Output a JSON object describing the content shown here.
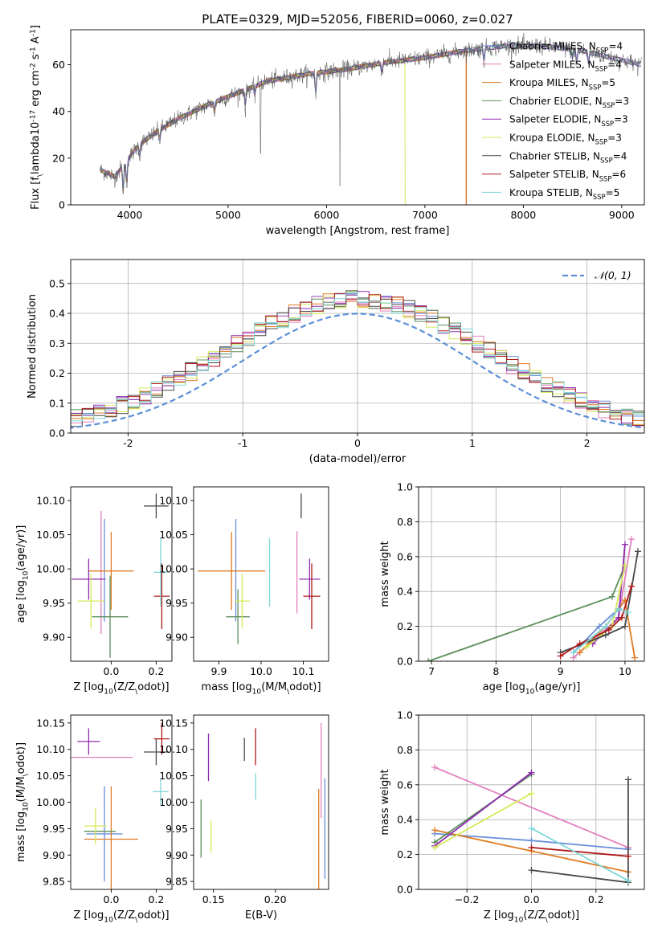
{
  "figure_title": "PLATE=0329, MJD=52056, FIBERID=0060, z=0.027",
  "colors": {
    "Chabrier MILES": "#6a8fd8",
    "Salpeter MILES": "#e37fbd",
    "Kroupa MILES": "#e07b22",
    "Chabrier ELODIE": "#5b8f5b",
    "Salpeter ELODIE": "#8f2bb0",
    "Kroupa ELODIE": "#d6e85a",
    "Chabrier STELIB": "#4a4a4a",
    "Salpeter STELIB": "#b01818",
    "Kroupa STELIB": "#7ed6d8"
  },
  "chart_data": [
    {
      "id": "spectrum",
      "type": "line",
      "title": "PLATE=0329, MJD=52056, FIBERID=0060, z=0.027",
      "xlabel": "wavelength [Angstrom, rest frame]",
      "ylabel": "Flux [f$_\\lambda$10$^{-17}$ erg cm$^{-2}$ s$^{-1}$ A$^{-1}$]",
      "xlim": [
        3400,
        9230
      ],
      "ylim": [
        0,
        75
      ],
      "xticks": [
        4000,
        5000,
        6000,
        7000,
        8000,
        9000
      ],
      "yticks": [
        0,
        20,
        40,
        60
      ],
      "legend_position": "top-right",
      "series": [
        {
          "name": "Chabrier MILES, N$_{SSP}$=4"
        },
        {
          "name": "Salpeter MILES, N$_{SSP}$=4"
        },
        {
          "name": "Kroupa MILES, N$_{SSP}$=5"
        },
        {
          "name": "Chabrier ELODIE, N$_{SSP}$=3"
        },
        {
          "name": "Salpeter ELODIE, N$_{SSP}$=3"
        },
        {
          "name": "Kroupa ELODIE, N$_{SSP}$=3"
        },
        {
          "name": "Chabrier STELIB, N$_{SSP}$=4"
        },
        {
          "name": "Salpeter STELIB, N$_{SSP}$=6"
        },
        {
          "name": "Kroupa STELIB, N$_{SSP}$=5"
        }
      ],
      "continuum": {
        "x": [
          3700,
          3850,
          3950,
          4100,
          4300,
          4500,
          4800,
          5100,
          5400,
          5800,
          6200,
          6600,
          7000,
          7400,
          7800,
          8200,
          8600,
          9000,
          9200
        ],
        "y": [
          15,
          12,
          18,
          26,
          32,
          37,
          43,
          48,
          53,
          56,
          58,
          61,
          63,
          66,
          68,
          68,
          66,
          62,
          60
        ]
      },
      "model_cutoffs": {
        "Kroupa ELODIE": 6800,
        "Salpeter STELIB": 7420,
        "Kroupa MILES": 7420
      }
    },
    {
      "id": "residuals",
      "type": "line",
      "xlabel": "(data-model)/error",
      "ylabel": "Normed distribution",
      "xlim": [
        -2.5,
        2.5
      ],
      "ylim": [
        0,
        0.58
      ],
      "xticks": [
        -2,
        -1,
        0,
        1,
        2
      ],
      "yticks": [
        0.0,
        0.1,
        0.2,
        0.3,
        0.4,
        0.5
      ],
      "grid": true,
      "legend_position": "top-right",
      "reference_curve": {
        "name": "$\\mathcal{N}(0, 1)$",
        "style": "dashed",
        "color": "#5b8fd8"
      },
      "bin_width": 0.1
    },
    {
      "id": "age_vs_Z",
      "type": "scatter",
      "xlabel": "Z [log$_{10}$($Z/Z_\\odot$)]",
      "ylabel": "age  [log$_{10}$($age/yr$)]",
      "xlim": [
        -0.18,
        0.27
      ],
      "ylim": [
        9.865,
        10.12
      ],
      "xticks": [
        0.0,
        0.2
      ],
      "yticks": [
        9.9,
        9.95,
        10.0,
        10.05,
        10.1
      ],
      "points": [
        {
          "s": "Chabrier MILES",
          "x": -0.03,
          "xerr": 0.0,
          "y": 9.998,
          "yerr": 0.075
        },
        {
          "s": "Salpeter MILES",
          "x": -0.045,
          "xerr": 0.0,
          "y": 9.995,
          "yerr": 0.09
        },
        {
          "s": "Kroupa MILES",
          "x": 0.0,
          "xerr": 0.1,
          "y": 9.997,
          "yerr": 0.057
        },
        {
          "s": "Chabrier ELODIE",
          "x": -0.005,
          "xerr": 0.08,
          "y": 9.93,
          "yerr": 0.06
        },
        {
          "s": "Salpeter ELODIE",
          "x": -0.1,
          "xerr": 0.075,
          "y": 9.985,
          "yerr": 0.03
        },
        {
          "s": "Kroupa ELODIE",
          "x": -0.09,
          "xerr": 0.06,
          "y": 9.953,
          "yerr": 0.04
        },
        {
          "s": "Chabrier STELIB",
          "x": 0.2,
          "xerr": 0.055,
          "y": 10.092,
          "yerr": 0.018
        },
        {
          "s": "Salpeter STELIB",
          "x": 0.225,
          "xerr": 0.035,
          "y": 9.96,
          "yerr": 0.048
        },
        {
          "s": "Kroupa STELIB",
          "x": 0.22,
          "xerr": 0.03,
          "y": 9.995,
          "yerr": 0.05
        }
      ]
    },
    {
      "id": "age_vs_mass",
      "type": "scatter",
      "xlabel": "mass [log$_{10}$($M/M_\\odot$)]",
      "ylabel": "",
      "xlim": [
        9.84,
        10.16
      ],
      "ylim": [
        9.865,
        10.12
      ],
      "xticks": [
        9.9,
        10.0,
        10.1
      ],
      "yticks": [
        9.9,
        9.95,
        10.0,
        10.05,
        10.1
      ],
      "points": [
        {
          "s": "Chabrier MILES",
          "x": 9.94,
          "xerr": 0.0,
          "y": 9.998,
          "yerr": 0.075
        },
        {
          "s": "Salpeter MILES",
          "x": 10.085,
          "xerr": 0.0,
          "y": 9.995,
          "yerr": 0.06
        },
        {
          "s": "Kroupa MILES",
          "x": 9.93,
          "xerr": 0.08,
          "y": 9.997,
          "yerr": 0.057
        },
        {
          "s": "Chabrier ELODIE",
          "x": 9.945,
          "xerr": 0.028,
          "y": 9.93,
          "yerr": 0.04
        },
        {
          "s": "Salpeter ELODIE",
          "x": 10.115,
          "xerr": 0.025,
          "y": 9.985,
          "yerr": 0.03
        },
        {
          "s": "Kroupa ELODIE",
          "x": 9.955,
          "xerr": 0.018,
          "y": 9.953,
          "yerr": 0.04
        },
        {
          "s": "Chabrier STELIB",
          "x": 10.095,
          "xerr": 0.0,
          "y": 10.092,
          "yerr": 0.018
        },
        {
          "s": "Salpeter STELIB",
          "x": 10.12,
          "xerr": 0.02,
          "y": 9.96,
          "yerr": 0.048
        },
        {
          "s": "Kroupa STELIB",
          "x": 10.02,
          "xerr": 0.0,
          "y": 9.995,
          "yerr": 0.05
        }
      ]
    },
    {
      "id": "mass_vs_Z",
      "type": "scatter",
      "xlabel": "Z [log$_{10}$($Z/Z_\\odot$)]",
      "ylabel": "mass [log$_{10}$($M/M_\\odot$)]",
      "xlim": [
        -0.18,
        0.27
      ],
      "ylim": [
        9.835,
        10.165
      ],
      "xticks": [
        0.0,
        0.2
      ],
      "yticks": [
        9.85,
        9.9,
        9.95,
        10.0,
        10.05,
        10.1,
        10.15
      ],
      "points": [
        {
          "s": "Chabrier MILES",
          "x": -0.03,
          "xerr": 0.08,
          "y": 9.94,
          "yerr": 0.09
        },
        {
          "s": "Salpeter MILES",
          "x": -0.045,
          "xerr": 0.14,
          "y": 10.085,
          "yerr": 0.0
        },
        {
          "s": "Kroupa MILES",
          "x": 0.0,
          "xerr": 0.12,
          "y": 9.93,
          "yerr": 0.1
        },
        {
          "s": "Chabrier ELODIE",
          "x": -0.05,
          "xerr": 0.07,
          "y": 9.945,
          "yerr": 0.0
        },
        {
          "s": "Salpeter ELODIE",
          "x": -0.1,
          "xerr": 0.05,
          "y": 10.115,
          "yerr": 0.025
        },
        {
          "s": "Kroupa ELODIE",
          "x": -0.07,
          "xerr": 0.05,
          "y": 9.955,
          "yerr": 0.035
        },
        {
          "s": "Chabrier STELIB",
          "x": 0.2,
          "xerr": 0.055,
          "y": 10.095,
          "yerr": 0.025
        },
        {
          "s": "Salpeter STELIB",
          "x": 0.225,
          "xerr": 0.035,
          "y": 10.12,
          "yerr": 0.03
        },
        {
          "s": "Kroupa STELIB",
          "x": 0.22,
          "xerr": 0.035,
          "y": 10.02,
          "yerr": 0.025
        }
      ]
    },
    {
      "id": "mass_vs_ebv",
      "type": "scatter",
      "xlabel": "E(B-V)",
      "ylabel": "",
      "xlim": [
        0.134,
        0.243
      ],
      "ylim": [
        9.835,
        10.165
      ],
      "xticks": [
        0.15,
        0.2
      ],
      "yticks": [
        9.85,
        9.9,
        9.95,
        10.0,
        10.05,
        10.1,
        10.15
      ],
      "points": [
        {
          "s": "Chabrier MILES",
          "x": 0.24,
          "xerr": 0.0,
          "y": 9.95,
          "yerr": 0.095
        },
        {
          "s": "Salpeter MILES",
          "x": 0.237,
          "xerr": 0.0,
          "y": 10.06,
          "yerr": 0.09
        },
        {
          "s": "Kroupa MILES",
          "x": 0.235,
          "xerr": 0.0,
          "y": 9.93,
          "yerr": 0.095
        },
        {
          "s": "Chabrier ELODIE",
          "x": 0.14,
          "xerr": 0.0,
          "y": 9.95,
          "yerr": 0.055
        },
        {
          "s": "Salpeter ELODIE",
          "x": 0.146,
          "xerr": 0.0,
          "y": 10.085,
          "yerr": 0.045
        },
        {
          "s": "Kroupa ELODIE",
          "x": 0.148,
          "xerr": 0.0,
          "y": 9.935,
          "yerr": 0.03
        },
        {
          "s": "Chabrier STELIB",
          "x": 0.175,
          "xerr": 0.0,
          "y": 10.1,
          "yerr": 0.022
        },
        {
          "s": "Salpeter STELIB",
          "x": 0.184,
          "xerr": 0.0,
          "y": 10.105,
          "yerr": 0.035
        },
        {
          "s": "Kroupa STELIB",
          "x": 0.184,
          "xerr": 0.0,
          "y": 10.03,
          "yerr": 0.025
        }
      ]
    },
    {
      "id": "weight_vs_age",
      "type": "line",
      "xlabel": "age  [log$_{10}$($age/yr$)]",
      "ylabel": "mass weight",
      "xlim": [
        6.8,
        10.3
      ],
      "ylim": [
        0,
        1.0
      ],
      "xticks": [
        7,
        8,
        9,
        10
      ],
      "yticks": [
        0.0,
        0.2,
        0.4,
        0.6,
        0.8,
        1.0
      ],
      "grid": true,
      "series": [
        {
          "s": "Chabrier MILES",
          "x": [
            9.2,
            9.6,
            9.9,
            10.0
          ],
          "y": [
            0.05,
            0.2,
            0.3,
            0.35
          ]
        },
        {
          "s": "Salpeter MILES",
          "x": [
            9.2,
            9.6,
            9.9,
            10.1
          ],
          "y": [
            0.02,
            0.15,
            0.25,
            0.7
          ]
        },
        {
          "s": "Kroupa MILES",
          "x": [
            9.3,
            9.7,
            9.9,
            10.0,
            10.15
          ],
          "y": [
            0.05,
            0.2,
            0.3,
            0.35,
            0.02
          ]
        },
        {
          "s": "Chabrier ELODIE",
          "x": [
            6.95,
            9.8,
            10.0
          ],
          "y": [
            0.0,
            0.37,
            0.55
          ]
        },
        {
          "s": "Salpeter ELODIE",
          "x": [
            9.5,
            9.9,
            10.0
          ],
          "y": [
            0.1,
            0.25,
            0.67
          ]
        },
        {
          "s": "Kroupa ELODIE",
          "x": [
            9.4,
            9.8,
            10.0
          ],
          "y": [
            0.08,
            0.2,
            0.55
          ]
        },
        {
          "s": "Chabrier STELIB",
          "x": [
            9.0,
            9.7,
            10.0,
            10.2
          ],
          "y": [
            0.05,
            0.15,
            0.2,
            0.63
          ]
        },
        {
          "s": "Salpeter STELIB",
          "x": [
            9.0,
            9.3,
            9.75,
            9.95,
            10.1
          ],
          "y": [
            0.03,
            0.1,
            0.18,
            0.25,
            0.43
          ]
        },
        {
          "s": "Kroupa STELIB",
          "x": [
            9.2,
            9.7,
            9.9,
            10.05
          ],
          "y": [
            0.05,
            0.2,
            0.3,
            0.28
          ]
        }
      ]
    },
    {
      "id": "weight_vs_Z",
      "type": "line",
      "xlabel": "Z [log$_{10}$($Z/Z_\\odot$)]",
      "ylabel": "mass weight",
      "xlim": [
        -0.35,
        0.35
      ],
      "ylim": [
        0,
        1.0
      ],
      "xticks": [
        -0.2,
        0.0,
        0.2
      ],
      "yticks": [
        0.0,
        0.2,
        0.4,
        0.6,
        0.8,
        1.0
      ],
      "grid": true,
      "series": [
        {
          "s": "Chabrier MILES",
          "x": [
            -0.3,
            0.0,
            0.3
          ],
          "y": [
            0.32,
            0.28,
            0.23
          ]
        },
        {
          "s": "Salpeter MILES",
          "x": [
            -0.3,
            0.3
          ],
          "y": [
            0.7,
            0.24
          ]
        },
        {
          "s": "Kroupa MILES",
          "x": [
            -0.3,
            0.0,
            0.3
          ],
          "y": [
            0.34,
            0.22,
            0.1
          ]
        },
        {
          "s": "Chabrier ELODIE",
          "x": [
            -0.3,
            0.0
          ],
          "y": [
            0.27,
            0.66
          ]
        },
        {
          "s": "Salpeter ELODIE",
          "x": [
            -0.3,
            0.0
          ],
          "y": [
            0.25,
            0.67
          ]
        },
        {
          "s": "Kroupa ELODIE",
          "x": [
            -0.3,
            0.0
          ],
          "y": [
            0.24,
            0.55
          ]
        },
        {
          "s": "Chabrier STELIB",
          "x": [
            0.0,
            0.3,
            0.3
          ],
          "y": [
            0.11,
            0.04,
            0.63
          ]
        },
        {
          "s": "Salpeter STELIB",
          "x": [
            0.0,
            0.3
          ],
          "y": [
            0.24,
            0.19
          ]
        },
        {
          "s": "Kroupa STELIB",
          "x": [
            0.0,
            0.3
          ],
          "y": [
            0.35,
            0.05
          ]
        }
      ]
    }
  ]
}
